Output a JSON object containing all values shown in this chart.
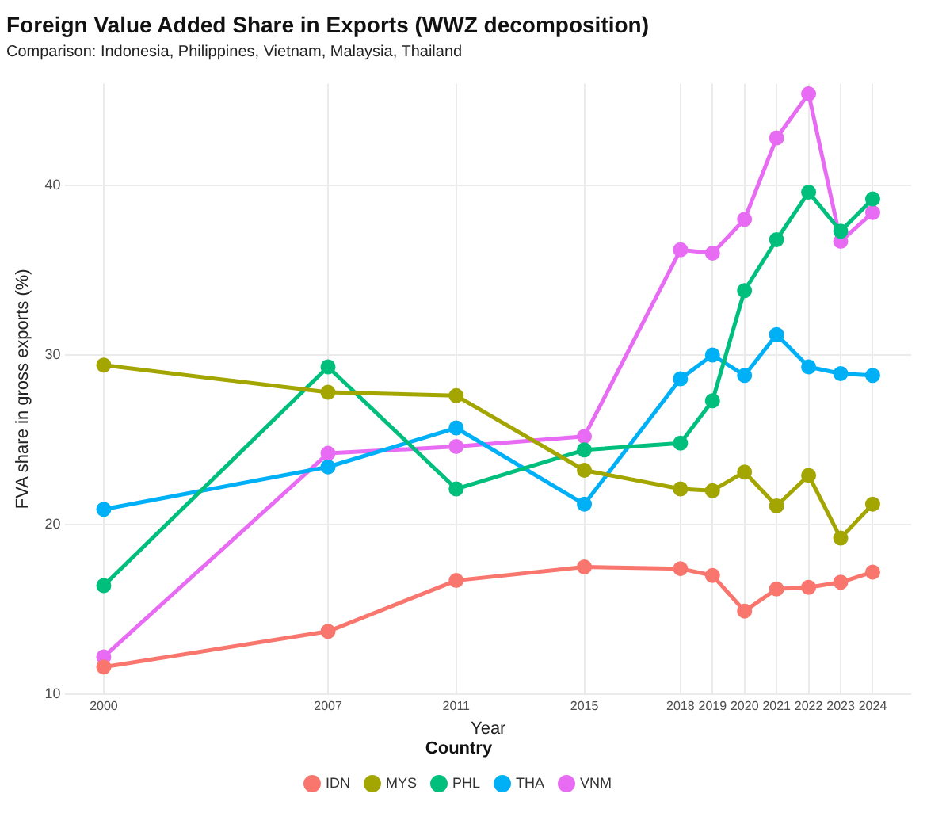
{
  "chart_data": {
    "type": "line",
    "title": "Foreign Value Added Share in Exports (WWZ decomposition)",
    "subtitle": "Comparison: Indonesia, Philippines, Vietnam, Malaysia, Thailand",
    "xlabel": "Year",
    "ylabel": "FVA share in gross exports (%)",
    "legend_title": "Country",
    "legend": "bottom",
    "grid": true,
    "marker": "circle",
    "line_style": "solid",
    "x": [
      2000,
      2007,
      2011,
      2015,
      2018,
      2019,
      2020,
      2021,
      2022,
      2023,
      2024
    ],
    "xlim": [
      1998.8,
      2025.2
    ],
    "xticks": [
      2000,
      2007,
      2011,
      2015,
      2018,
      2019,
      2020,
      2021,
      2022,
      2023,
      2024
    ],
    "ylim": [
      10,
      46
    ],
    "yticks": [
      10,
      20,
      30,
      40
    ],
    "series": [
      {
        "name": "IDN",
        "color": "#f8766d",
        "values": [
          11.6,
          13.7,
          16.7,
          17.5,
          17.4,
          17.0,
          14.9,
          16.2,
          16.3,
          16.6,
          17.2
        ]
      },
      {
        "name": "MYS",
        "color": "#a3a500",
        "values": [
          29.4,
          27.8,
          27.6,
          23.2,
          22.1,
          22.0,
          23.1,
          21.1,
          22.9,
          19.2,
          21.2
        ]
      },
      {
        "name": "PHL",
        "color": "#00bf7d",
        "values": [
          16.4,
          29.3,
          22.1,
          24.4,
          24.8,
          27.3,
          33.8,
          36.8,
          39.6,
          37.3,
          39.2
        ]
      },
      {
        "name": "THA",
        "color": "#00b0f6",
        "values": [
          20.9,
          23.4,
          25.7,
          21.2,
          28.6,
          30.0,
          28.8,
          31.2,
          29.3,
          28.9,
          28.8
        ]
      },
      {
        "name": "VNM",
        "color": "#e76bf3",
        "values": [
          12.2,
          24.2,
          24.6,
          25.2,
          36.2,
          36.0,
          38.0,
          42.8,
          45.4,
          36.7,
          38.4
        ]
      }
    ]
  }
}
